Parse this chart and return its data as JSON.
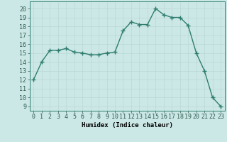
{
  "x": [
    0,
    1,
    2,
    3,
    4,
    5,
    6,
    7,
    8,
    9,
    10,
    11,
    12,
    13,
    14,
    15,
    16,
    17,
    18,
    19,
    20,
    21,
    22,
    23
  ],
  "y": [
    12,
    14,
    15.3,
    15.3,
    15.5,
    15.1,
    15.0,
    14.8,
    14.8,
    15.0,
    15.1,
    17.5,
    18.5,
    18.2,
    18.2,
    20.0,
    19.3,
    19.0,
    19.0,
    18.1,
    15.0,
    13.0,
    10.0,
    9.0
  ],
  "line_color": "#2e7d6e",
  "marker": "+",
  "marker_size": 4,
  "bg_color": "#cce8e6",
  "grid_color": "#b8d8d5",
  "xlabel": "Humidex (Indice chaleur)",
  "ylabel_ticks": [
    9,
    10,
    11,
    12,
    13,
    14,
    15,
    16,
    17,
    18,
    19,
    20
  ],
  "ylim": [
    8.5,
    20.8
  ],
  "xlim": [
    -0.5,
    23.5
  ],
  "xlabel_fontsize": 6.5,
  "tick_fontsize": 6.0,
  "linewidth": 1.0
}
